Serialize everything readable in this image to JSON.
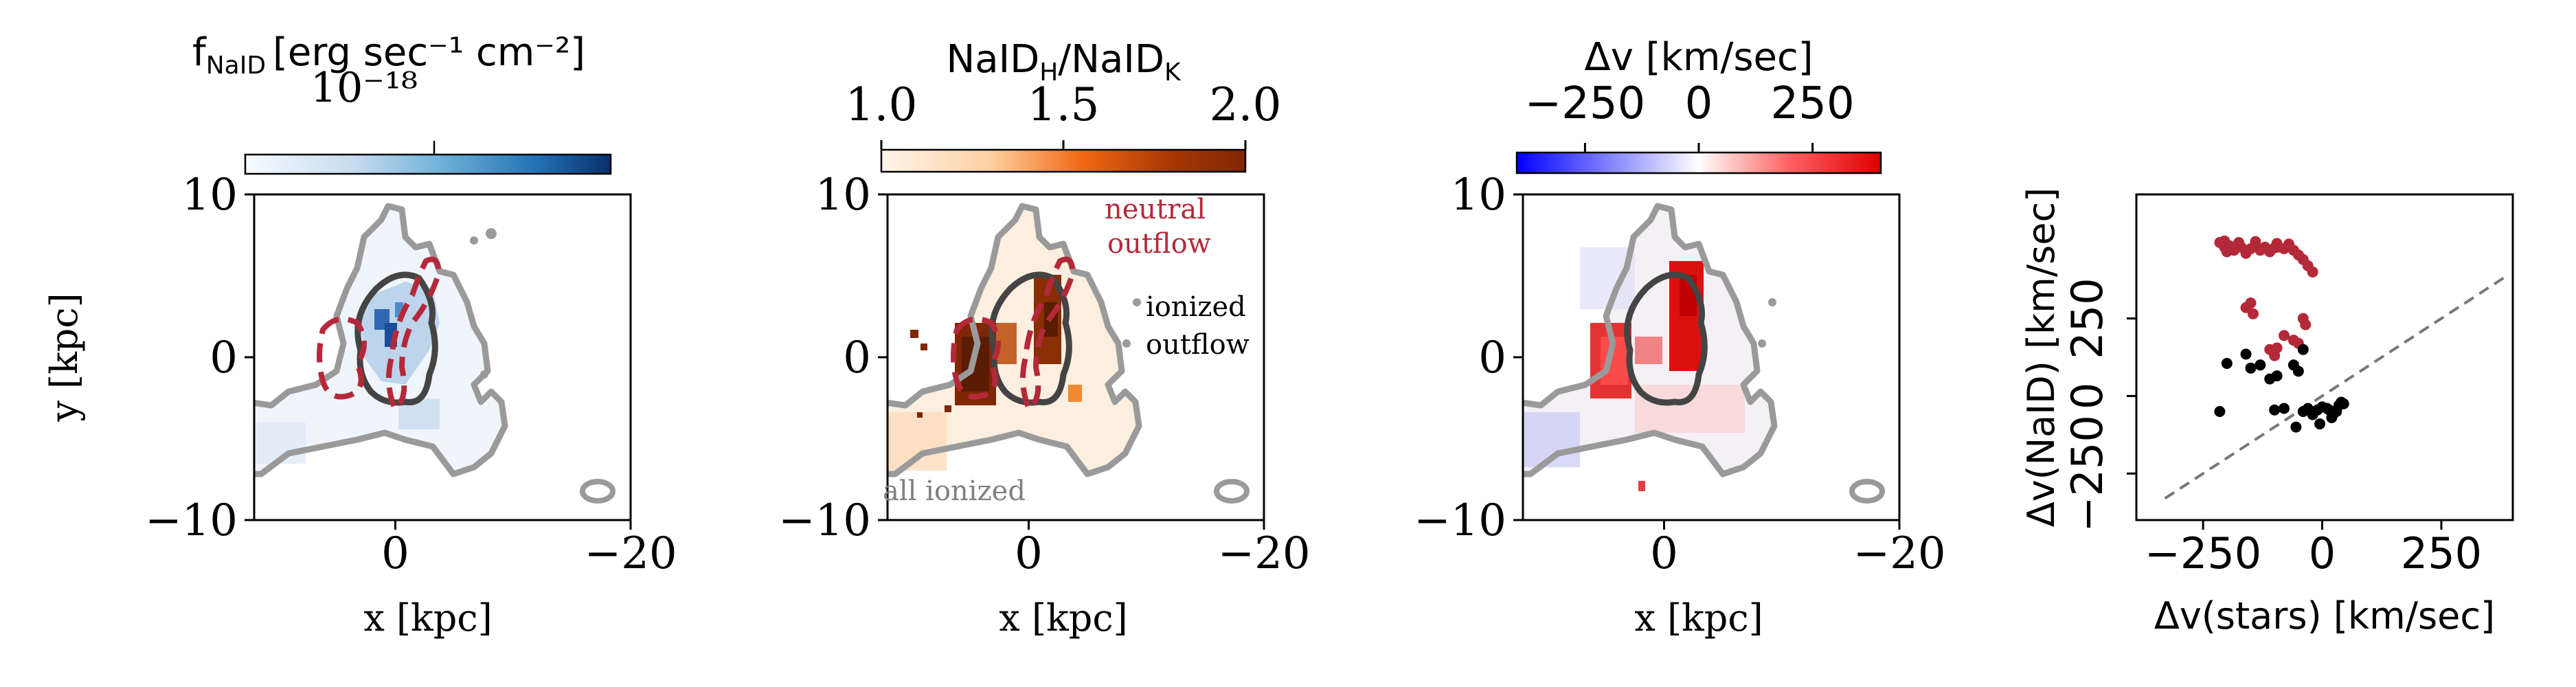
{
  "colors": {
    "contour_gray": "#9a9a9a",
    "ionized_contour": "#444444",
    "neutral_red": "#b4293a",
    "black": "#000000",
    "dashed_line": "#777777"
  },
  "chart_data": [
    {
      "type": "heatmap",
      "panel": "NaID flux map",
      "colorbar_label": "f",
      "colorbar_label_sub": "NaID",
      "colorbar_label_units": "[erg sec⁻¹ cm⁻²]",
      "colorbar_scale_label": "10⁻¹⁸",
      "colorbar_ticks": [],
      "colormap": [
        "#f7fbff",
        "#c6dbef",
        "#6baed6",
        "#2171b5",
        "#08306b"
      ],
      "xlabel": "x [kpc]",
      "ylabel": "y [kpc]",
      "xlim": [
        12,
        -20
      ],
      "ylim": [
        -10,
        10
      ],
      "x_ticks": [
        0,
        -20
      ],
      "y_ticks": [
        10,
        0,
        -10
      ],
      "shows_neutral_contour": true
    },
    {
      "type": "heatmap",
      "panel": "NaID doublet ratio map",
      "colorbar_label": "NaID",
      "colorbar_label_sub1": "H",
      "colorbar_label_mid": "/NaID",
      "colorbar_label_sub2": "K",
      "colorbar_ticks": [
        "1.0",
        "1.5",
        "2.0"
      ],
      "colorbar_range": [
        1.0,
        2.0
      ],
      "colormap": [
        "#fff5eb",
        "#fdd0a2",
        "#f16913",
        "#a63603",
        "#7f2704"
      ],
      "xlabel": "x [kpc]",
      "xlim": [
        12,
        -20
      ],
      "ylim": [
        -10,
        10
      ],
      "x_ticks": [
        0,
        -20
      ],
      "y_ticks": [
        10,
        0,
        -10
      ],
      "annotations": {
        "neutral_line1": "neutral",
        "neutral_line2": "outflow",
        "ionized_line1": "ionized",
        "ionized_line2": "outflow",
        "all_ionized": "all ionized"
      }
    },
    {
      "type": "heatmap",
      "panel": "NaID velocity map",
      "colorbar_label": "Δv [km/sec]",
      "colorbar_ticks": [
        "−250",
        "0",
        "250"
      ],
      "colorbar_range": [
        -400,
        400
      ],
      "colormap": [
        "#0000ff",
        "#8080ff",
        "#ffffff",
        "#ff6060",
        "#dd0000"
      ],
      "xlabel": "x [kpc]",
      "xlim": [
        12,
        -20
      ],
      "ylim": [
        -10,
        10
      ],
      "x_ticks": [
        0,
        -20
      ],
      "y_ticks": [
        10,
        0,
        -10
      ]
    },
    {
      "type": "scatter",
      "panel": "velocity comparison",
      "xlabel": "Δv(stars) [km/sec]",
      "ylabel": "Δv(NaID) [km/sec]",
      "xlim": [
        -390,
        400
      ],
      "ylim": [
        -400,
        650
      ],
      "x_ticks": [
        "−250",
        "0",
        "250"
      ],
      "y_ticks": [
        "−250",
        "0",
        "250"
      ],
      "x_tick_values": [
        -250,
        0,
        250
      ],
      "y_tick_values": [
        -250,
        0,
        250
      ],
      "reference_line": "one-to-one",
      "series": [
        {
          "name": "neutral outflow",
          "color": "#b4293a",
          "points": [
            [
              -215,
              495
            ],
            [
              -205,
              480
            ],
            [
              -195,
              485
            ],
            [
              -185,
              470
            ],
            [
              -170,
              480
            ],
            [
              -160,
              460
            ],
            [
              -150,
              475
            ],
            [
              -140,
              485
            ],
            [
              -130,
              470
            ],
            [
              -120,
              480
            ],
            [
              -110,
              465
            ],
            [
              -100,
              478
            ],
            [
              -92,
              480
            ],
            [
              -80,
              475
            ],
            [
              -70,
              490
            ],
            [
              -60,
              470
            ],
            [
              -50,
              455
            ],
            [
              -40,
              440
            ],
            [
              -30,
              420
            ],
            [
              -20,
              400
            ],
            [
              -205,
              500
            ],
            [
              -175,
              495
            ],
            [
              -140,
              498
            ],
            [
              -95,
              492
            ],
            [
              -200,
              465
            ],
            [
              -160,
              285
            ],
            [
              -150,
              300
            ],
            [
              -145,
              265
            ],
            [
              -80,
              195
            ],
            [
              -60,
              180
            ],
            [
              -50,
              170
            ],
            [
              -100,
              130
            ],
            [
              -110,
              150
            ],
            [
              -95,
              155
            ],
            [
              -40,
              250
            ],
            [
              -35,
              230
            ]
          ]
        },
        {
          "name": "ionized outflow",
          "color": "#000000",
          "points": [
            [
              -215,
              -50
            ],
            [
              -200,
              105
            ],
            [
              -160,
              135
            ],
            [
              -150,
              90
            ],
            [
              -130,
              100
            ],
            [
              -110,
              55
            ],
            [
              -95,
              65
            ],
            [
              -60,
              100
            ],
            [
              -50,
              80
            ],
            [
              -40,
              150
            ],
            [
              -30,
              -40
            ],
            [
              -20,
              -60
            ],
            [
              -10,
              -45
            ],
            [
              0,
              -35
            ],
            [
              10,
              -40
            ],
            [
              15,
              -45
            ],
            [
              20,
              -70
            ],
            [
              25,
              -55
            ],
            [
              -5,
              -90
            ],
            [
              -40,
              -50
            ],
            [
              -80,
              -40
            ],
            [
              -100,
              -45
            ],
            [
              35,
              -30
            ],
            [
              40,
              -20
            ],
            [
              45,
              -25
            ],
            [
              30,
              -50
            ],
            [
              -55,
              -100
            ]
          ]
        }
      ]
    }
  ]
}
